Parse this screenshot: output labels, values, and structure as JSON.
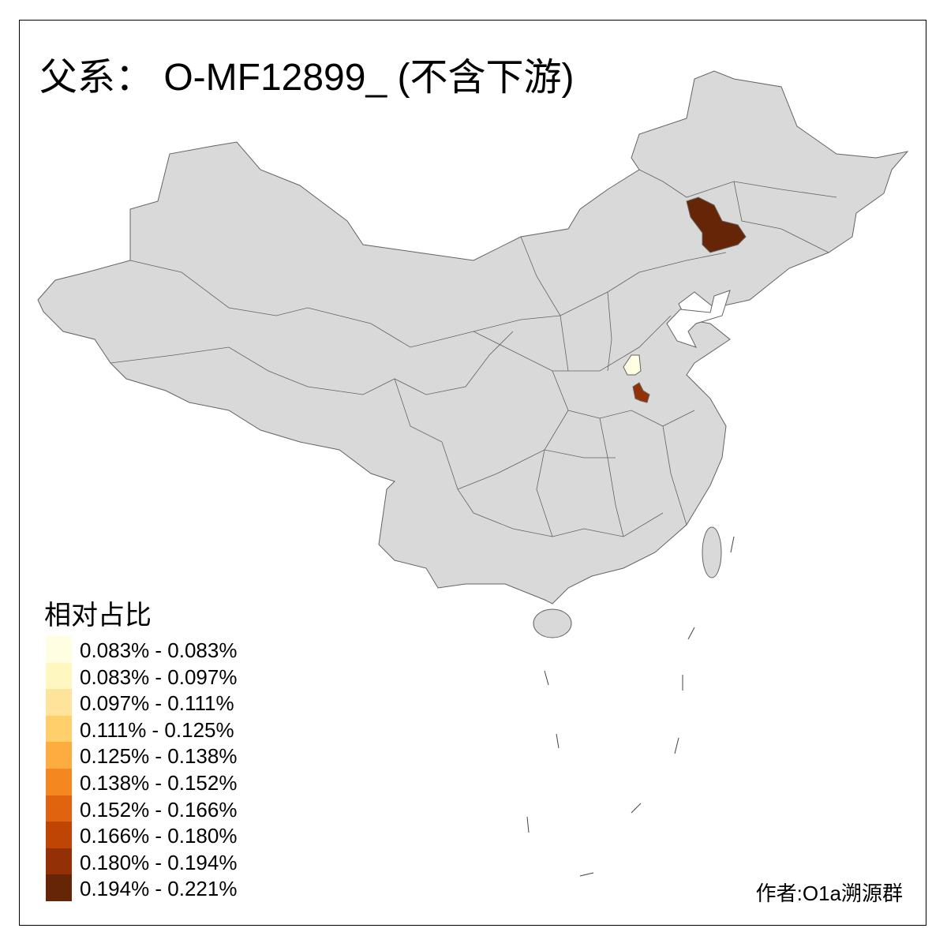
{
  "title": "父系： O-MF12899_ (不含下游)",
  "legend": {
    "title": "相对占比",
    "items": [
      {
        "label": "0.083% - 0.083%",
        "color": "#FFFEE2"
      },
      {
        "label": "0.083% - 0.097%",
        "color": "#FFF6C0"
      },
      {
        "label": "0.097% - 0.111%",
        "color": "#FEE49A"
      },
      {
        "label": "0.111% - 0.125%",
        "color": "#FECF6A"
      },
      {
        "label": "0.125% - 0.138%",
        "color": "#FDAC3F"
      },
      {
        "label": "0.138% - 0.152%",
        "color": "#F4871F"
      },
      {
        "label": "0.152% - 0.166%",
        "color": "#E0630F"
      },
      {
        "label": "0.166% - 0.180%",
        "color": "#BF4505"
      },
      {
        "label": "0.180% - 0.194%",
        "color": "#933006"
      },
      {
        "label": "0.194% - 0.221%",
        "color": "#662506"
      }
    ]
  },
  "map": {
    "base_color": "#D9D9D9",
    "border_color": "#636363",
    "highlighted_regions": [
      {
        "legend_class": 9
      },
      {
        "legend_class": 0
      },
      {
        "legend_class": 8
      }
    ]
  },
  "author": "作者:O1a溯源群"
}
